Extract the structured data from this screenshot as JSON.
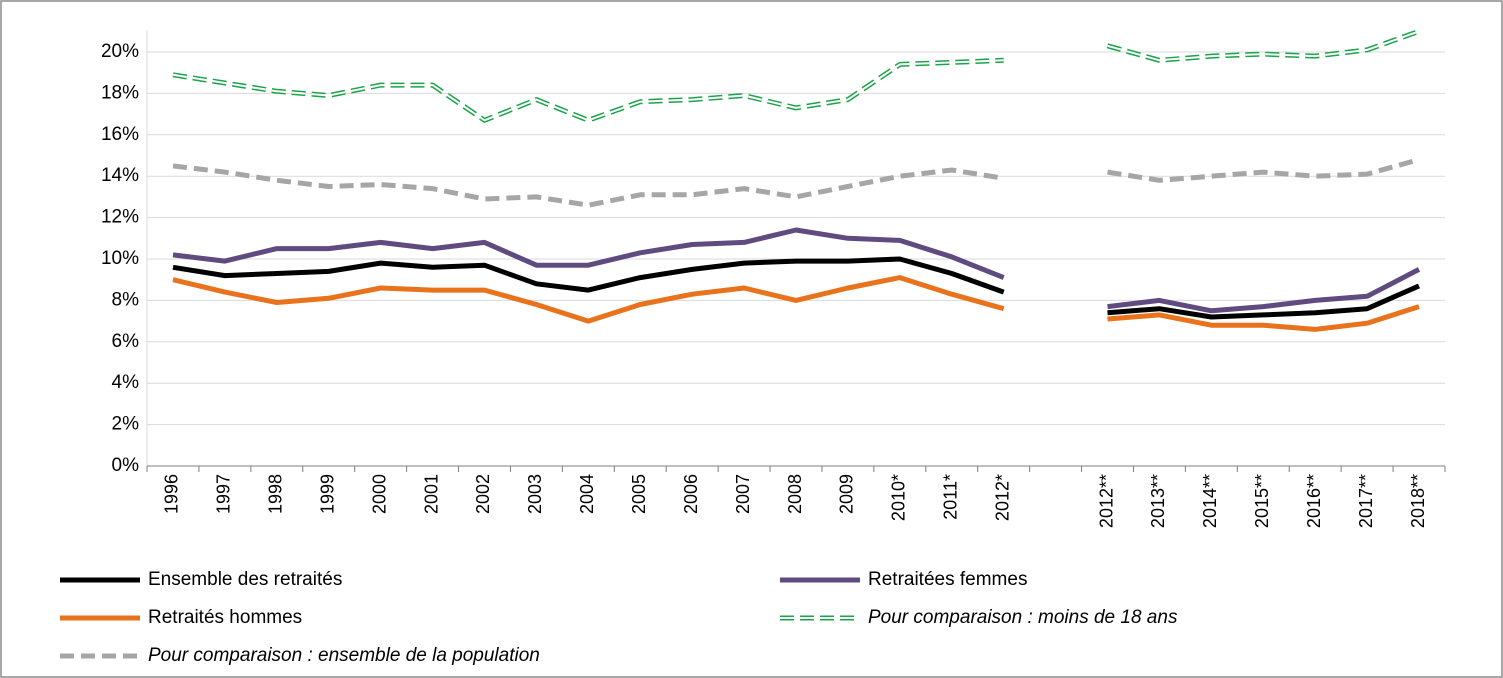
{
  "chart_data": {
    "type": "line",
    "categories": [
      "1996",
      "1997",
      "1998",
      "1999",
      "2000",
      "2001",
      "2002",
      "2003",
      "2004",
      "2005",
      "2006",
      "2007",
      "2008",
      "2009",
      "2010*",
      "2011*",
      "2012*",
      null,
      "2012**",
      "2013**",
      "2014**",
      "2015**",
      "2016**",
      "2017**",
      "2018**"
    ],
    "ylim": [
      0,
      20
    ],
    "yticks": [
      {
        "value": 0,
        "label": "0%"
      },
      {
        "value": 2,
        "label": "2%"
      },
      {
        "value": 4,
        "label": "4%"
      },
      {
        "value": 6,
        "label": "6%"
      },
      {
        "value": 8,
        "label": "8%"
      },
      {
        "value": 10,
        "label": "10%"
      },
      {
        "value": 12,
        "label": "12%"
      },
      {
        "value": 14,
        "label": "14%"
      },
      {
        "value": 16,
        "label": "16%"
      },
      {
        "value": 18,
        "label": "18%"
      },
      {
        "value": 20,
        "label": "20%"
      }
    ],
    "grid": true,
    "series": [
      {
        "name": "Ensemble des retraités",
        "color": "#000000",
        "style": "solid",
        "italic": false,
        "values": [
          9.6,
          9.2,
          9.3,
          9.4,
          9.8,
          9.6,
          9.7,
          8.8,
          8.5,
          9.1,
          9.5,
          9.8,
          9.9,
          9.9,
          10.0,
          9.3,
          8.4,
          null,
          7.4,
          7.6,
          7.2,
          7.3,
          7.4,
          7.6,
          8.7
        ]
      },
      {
        "name": "Retraitées femmes",
        "color": "#5f4b7f",
        "style": "solid",
        "italic": false,
        "values": [
          10.2,
          9.9,
          10.5,
          10.5,
          10.8,
          10.5,
          10.8,
          9.7,
          9.7,
          10.3,
          10.7,
          10.8,
          11.4,
          11.0,
          10.9,
          10.1,
          9.1,
          null,
          7.7,
          8.0,
          7.5,
          7.7,
          8.0,
          8.2,
          9.5
        ]
      },
      {
        "name": "Retraités hommes",
        "color": "#e8731c",
        "style": "solid",
        "italic": false,
        "values": [
          9.0,
          8.4,
          7.9,
          8.1,
          8.6,
          8.5,
          8.5,
          7.8,
          7.0,
          7.8,
          8.3,
          8.6,
          8.0,
          8.6,
          9.1,
          8.3,
          7.6,
          null,
          7.1,
          7.3,
          6.8,
          6.8,
          6.6,
          6.9,
          7.7
        ]
      },
      {
        "name": "Pour comparaison : moins de 18 ans",
        "color": "#1aa34a",
        "style": "double-dashed",
        "italic": true,
        "values": [
          18.9,
          18.5,
          18.1,
          17.9,
          18.4,
          18.4,
          16.7,
          17.7,
          16.7,
          17.6,
          17.7,
          17.9,
          17.3,
          17.7,
          19.4,
          19.5,
          19.6,
          null,
          20.3,
          19.6,
          19.8,
          19.9,
          19.8,
          20.1,
          21.0
        ]
      },
      {
        "name": "Pour comparaison : ensemble de la population",
        "color": "#a6a6a6",
        "style": "dashed",
        "italic": true,
        "values": [
          14.5,
          14.2,
          13.8,
          13.5,
          13.6,
          13.4,
          12.9,
          13.0,
          12.6,
          13.1,
          13.1,
          13.4,
          13.0,
          13.5,
          14.0,
          14.3,
          13.9,
          null,
          14.2,
          13.8,
          14.0,
          14.2,
          14.0,
          14.1,
          14.8
        ]
      }
    ]
  }
}
